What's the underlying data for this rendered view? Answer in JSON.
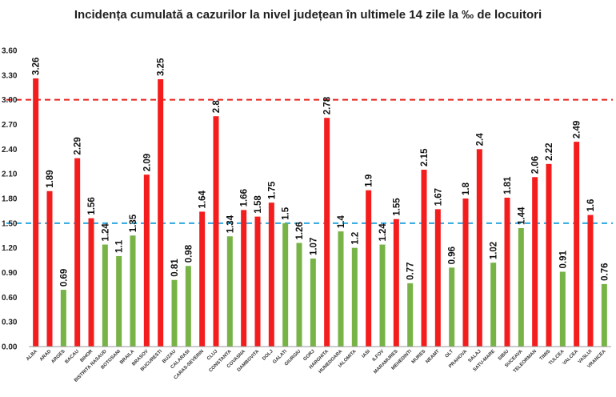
{
  "chart_data": {
    "type": "bar",
    "title": "Incidența cumulată a cazurilor la nivel județean în ultimele 14 zile la ‰ de locuitori",
    "xlabel": "",
    "ylabel": "",
    "ylim": [
      0,
      3.6
    ],
    "yticks": [
      "0.00",
      "0.30",
      "0.60",
      "0.90",
      "1.20",
      "1.50",
      "1.80",
      "2.10",
      "2.40",
      "2.70",
      "3.00",
      "3.30",
      "3.60"
    ],
    "grid": false,
    "categories": [
      "ALBA",
      "ARAD",
      "ARGES",
      "BACAU",
      "BIHOR",
      "BISTRITA NASAUD",
      "BOTOSANI",
      "BRAILA",
      "BRASOV",
      "BUCURESTI",
      "BUZAU",
      "CALARASI",
      "CARAS-SEVERIN",
      "CLUJ",
      "CONSTANTA",
      "COVASNA",
      "DAMBOVITA",
      "DOLJ",
      "GALATI",
      "GIURGIU",
      "GORJ",
      "HARGHITA",
      "HUNEDOARA",
      "IALOMITA",
      "IASI",
      "ILFOV",
      "MARAMURES",
      "MEHEDINTI",
      "MURES",
      "NEAMT",
      "OLT",
      "PRAHOVA",
      "SALAJ",
      "SATU-MARE",
      "SIBIU",
      "SUCEAVA",
      "TELEORMAN",
      "TIMIS",
      "TULCEA",
      "VALCEA",
      "VASLUI",
      "VRANCEA"
    ],
    "values": [
      3.26,
      1.89,
      0.69,
      2.29,
      1.56,
      1.24,
      1.1,
      1.35,
      2.09,
      3.25,
      0.81,
      0.98,
      1.64,
      2.8,
      1.34,
      1.66,
      1.58,
      1.75,
      1.5,
      1.26,
      1.07,
      2.78,
      1.4,
      1.2,
      1.9,
      1.24,
      1.55,
      0.77,
      2.15,
      1.67,
      0.96,
      1.8,
      2.4,
      1.02,
      1.81,
      1.44,
      2.06,
      2.22,
      0.91,
      2.49,
      1.6,
      0.76
    ],
    "data_labels": [
      "3.26",
      "1.89",
      "0.69",
      "2.29",
      "1.56",
      "1.24",
      "1.1",
      "1.35",
      "2.09",
      "3.25",
      "0.81",
      "0.98",
      "1.64",
      "2.8",
      "1.34",
      "1.66",
      "1.58",
      "1.75",
      "1.5",
      "1.26",
      "1.07",
      "2.78",
      "1.4",
      "1.2",
      "1.9",
      "1.24",
      "1.55",
      "0.77",
      "2.15",
      "1.67",
      "0.96",
      "1.8",
      "2.4",
      "1.02",
      "1.81",
      "1.44",
      "2.06",
      "2.22",
      "0.91",
      "2.49",
      "1.6",
      "0.76"
    ],
    "thresholds": [
      {
        "value": 3.0,
        "style": "dashed",
        "color": "#e8231e"
      },
      {
        "value": 1.5,
        "style": "dashed",
        "color": "#2aa8e0"
      }
    ],
    "colors": {
      "above_threshold": "#f41d1d",
      "below_threshold": "#77b347"
    }
  }
}
